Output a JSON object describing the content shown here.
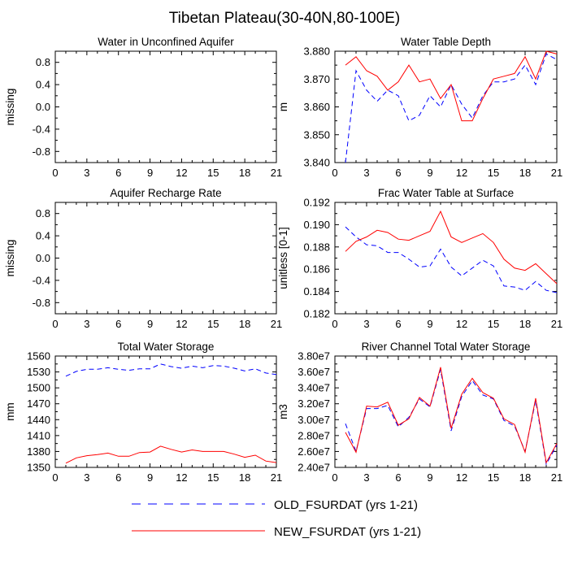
{
  "figure": {
    "title": "Tibetan Plateau(30-40N,80-100E)",
    "legend": [
      {
        "label": "OLD_FSURDAT (yrs 1-21)",
        "color": "#0000ff",
        "style": "dashed"
      },
      {
        "label": "NEW_FSURDAT (yrs 1-21)",
        "color": "#ff0000",
        "style": "solid"
      }
    ]
  },
  "chart_data": [
    {
      "type": "line",
      "title": "Water in Unconfined Aquifer",
      "ylabel": "missing",
      "xlim": [
        0,
        21
      ],
      "ylim": [
        -1.0,
        1.0
      ],
      "xticks": [
        0,
        3,
        6,
        9,
        12,
        15,
        18,
        21
      ],
      "xtick_labels": [
        "0",
        "3",
        "6",
        "9",
        "12",
        "15",
        "18",
        "21"
      ],
      "yticks": [
        -0.8,
        -0.4,
        0.0,
        0.4,
        0.8
      ],
      "ytick_labels": [
        "-0.8",
        "-0.4",
        "0.0",
        "0.4",
        "0.8"
      ],
      "series": []
    },
    {
      "type": "line",
      "title": "Water Table Depth",
      "ylabel": "m",
      "xlim": [
        0,
        21
      ],
      "ylim": [
        3.84,
        3.88
      ],
      "xticks": [
        0,
        3,
        6,
        9,
        12,
        15,
        18,
        21
      ],
      "xtick_labels": [
        "0",
        "3",
        "6",
        "9",
        "12",
        "15",
        "18",
        "21"
      ],
      "yticks": [
        3.84,
        3.85,
        3.86,
        3.87,
        3.88
      ],
      "ytick_labels": [
        "3.840",
        "3.850",
        "3.860",
        "3.870",
        "3.880"
      ],
      "series": [
        {
          "name": "OLD_FSURDAT (yrs 1-21)",
          "color": "#0000ff",
          "style": "dashed",
          "x": [
            1,
            2,
            3,
            4,
            5,
            6,
            7,
            8,
            9,
            10,
            11,
            12,
            13,
            14,
            15,
            16,
            17,
            18,
            19,
            20,
            21
          ],
          "values": [
            3.84,
            3.873,
            3.866,
            3.862,
            3.866,
            3.864,
            3.855,
            3.857,
            3.864,
            3.86,
            3.868,
            3.861,
            3.856,
            3.864,
            3.869,
            3.869,
            3.87,
            3.875,
            3.868,
            3.879,
            3.877
          ]
        },
        {
          "name": "NEW_FSURDAT (yrs 1-21)",
          "color": "#ff0000",
          "style": "solid",
          "x": [
            1,
            2,
            3,
            4,
            5,
            6,
            7,
            8,
            9,
            10,
            11,
            12,
            13,
            14,
            15,
            16,
            17,
            18,
            19,
            20,
            21
          ],
          "values": [
            3.875,
            3.878,
            3.873,
            3.871,
            3.866,
            3.869,
            3.875,
            3.869,
            3.87,
            3.863,
            3.868,
            3.855,
            3.855,
            3.863,
            3.87,
            3.871,
            3.872,
            3.878,
            3.87,
            3.88,
            3.879
          ]
        }
      ]
    },
    {
      "type": "line",
      "title": "Aquifer Recharge Rate",
      "ylabel": "missing",
      "xlim": [
        0,
        21
      ],
      "ylim": [
        -1.0,
        1.0
      ],
      "xticks": [
        0,
        3,
        6,
        9,
        12,
        15,
        18,
        21
      ],
      "xtick_labels": [
        "0",
        "3",
        "6",
        "9",
        "12",
        "15",
        "18",
        "21"
      ],
      "yticks": [
        -0.8,
        -0.4,
        0.0,
        0.4,
        0.8
      ],
      "ytick_labels": [
        "-0.8",
        "-0.4",
        "0.0",
        "0.4",
        "0.8"
      ],
      "series": []
    },
    {
      "type": "line",
      "title": "Frac Water Table at Surface",
      "ylabel": "unitless [0-1]",
      "xlim": [
        0,
        21
      ],
      "ylim": [
        0.182,
        0.192
      ],
      "xticks": [
        0,
        3,
        6,
        9,
        12,
        15,
        18,
        21
      ],
      "xtick_labels": [
        "0",
        "3",
        "6",
        "9",
        "12",
        "15",
        "18",
        "21"
      ],
      "yticks": [
        0.182,
        0.184,
        0.186,
        0.188,
        0.19,
        0.192
      ],
      "ytick_labels": [
        "0.182",
        "0.184",
        "0.186",
        "0.188",
        "0.190",
        "0.192"
      ],
      "series": [
        {
          "name": "OLD_FSURDAT (yrs 1-21)",
          "color": "#0000ff",
          "style": "dashed",
          "x": [
            1,
            2,
            3,
            4,
            5,
            6,
            7,
            8,
            9,
            10,
            11,
            12,
            13,
            14,
            15,
            16,
            17,
            18,
            19,
            20,
            21
          ],
          "values": [
            0.1898,
            0.1889,
            0.1882,
            0.1881,
            0.1875,
            0.1875,
            0.1869,
            0.1862,
            0.1863,
            0.1878,
            0.1862,
            0.1854,
            0.1861,
            0.1868,
            0.1863,
            0.1845,
            0.1844,
            0.1841,
            0.1849,
            0.1841,
            0.1839
          ]
        },
        {
          "name": "NEW_FSURDAT (yrs 1-21)",
          "color": "#ff0000",
          "style": "solid",
          "x": [
            1,
            2,
            3,
            4,
            5,
            6,
            7,
            8,
            9,
            10,
            11,
            12,
            13,
            14,
            15,
            16,
            17,
            18,
            19,
            20,
            21
          ],
          "values": [
            0.1876,
            0.1885,
            0.1889,
            0.1895,
            0.1893,
            0.1887,
            0.1886,
            0.189,
            0.1894,
            0.1912,
            0.1889,
            0.1884,
            0.1888,
            0.1892,
            0.1884,
            0.1869,
            0.1861,
            0.1859,
            0.1865,
            0.1856,
            0.1847
          ]
        }
      ]
    },
    {
      "type": "line",
      "title": "Total Water Storage",
      "ylabel": "mm",
      "xlim": [
        0,
        21
      ],
      "ylim": [
        1350,
        1560
      ],
      "xticks": [
        0,
        3,
        6,
        9,
        12,
        15,
        18,
        21
      ],
      "xtick_labels": [
        "0",
        "3",
        "6",
        "9",
        "12",
        "15",
        "18",
        "21"
      ],
      "yticks": [
        1350,
        1380,
        1410,
        1440,
        1470,
        1500,
        1530,
        1560
      ],
      "ytick_labels": [
        "1350",
        "1380",
        "1410",
        "1440",
        "1470",
        "1500",
        "1530",
        "1560"
      ],
      "series": [
        {
          "name": "OLD_FSURDAT (yrs 1-21)",
          "color": "#0000ff",
          "style": "dashed",
          "x": [
            1,
            2,
            3,
            4,
            5,
            6,
            7,
            8,
            9,
            10,
            11,
            12,
            13,
            14,
            15,
            16,
            17,
            18,
            19,
            20,
            21
          ],
          "values": [
            1522,
            1531,
            1535,
            1535,
            1538,
            1535,
            1533,
            1536,
            1536,
            1545,
            1540,
            1537,
            1541,
            1538,
            1542,
            1541,
            1537,
            1532,
            1536,
            1528,
            1525
          ]
        },
        {
          "name": "NEW_FSURDAT (yrs 1-21)",
          "color": "#ff0000",
          "style": "solid",
          "x": [
            1,
            2,
            3,
            4,
            5,
            6,
            7,
            8,
            9,
            10,
            11,
            12,
            13,
            14,
            15,
            16,
            17,
            18,
            19,
            20,
            21
          ],
          "values": [
            1358,
            1368,
            1372,
            1374,
            1377,
            1371,
            1371,
            1378,
            1379,
            1390,
            1384,
            1379,
            1383,
            1380,
            1380,
            1380,
            1375,
            1369,
            1373,
            1362,
            1359
          ]
        }
      ]
    },
    {
      "type": "line",
      "title": "River Channel Total Water Storage",
      "ylabel": "m3",
      "xlim": [
        0,
        21
      ],
      "ylim": [
        24000000,
        38000000
      ],
      "xticks": [
        0,
        3,
        6,
        9,
        12,
        15,
        18,
        21
      ],
      "xtick_labels": [
        "0",
        "3",
        "6",
        "9",
        "12",
        "15",
        "18",
        "21"
      ],
      "yticks": [
        24000000,
        26000000,
        28000000,
        30000000,
        32000000,
        34000000,
        36000000,
        38000000
      ],
      "ytick_labels": [
        "2.40e7",
        "2.60e7",
        "2.80e7",
        "3.00e7",
        "3.20e7",
        "3.40e7",
        "3.60e7",
        "3.80e7"
      ],
      "series": [
        {
          "name": "OLD_FSURDAT (yrs 1-21)",
          "color": "#0000ff",
          "style": "dashed",
          "x": [
            1,
            2,
            3,
            4,
            5,
            6,
            7,
            8,
            9,
            10,
            11,
            12,
            13,
            14,
            15,
            16,
            17,
            18,
            19,
            20,
            21
          ],
          "values": [
            29500000,
            26000000,
            31400000,
            31400000,
            31800000,
            29100000,
            30300000,
            32600000,
            31600000,
            36300000,
            28600000,
            32900000,
            34900000,
            33100000,
            32600000,
            29900000,
            29200000,
            26000000,
            32400000,
            24400000,
            26800000
          ]
        },
        {
          "name": "NEW_FSURDAT (yrs 1-21)",
          "color": "#ff0000",
          "style": "solid",
          "x": [
            1,
            2,
            3,
            4,
            5,
            6,
            7,
            8,
            9,
            10,
            11,
            12,
            13,
            14,
            15,
            16,
            17,
            18,
            19,
            20,
            21
          ],
          "values": [
            28400000,
            25900000,
            31700000,
            31600000,
            32200000,
            29300000,
            30100000,
            32800000,
            31700000,
            36600000,
            28900000,
            33200000,
            35200000,
            33400000,
            32700000,
            30100000,
            29400000,
            25900000,
            32700000,
            24600000,
            27000000
          ]
        }
      ]
    }
  ]
}
